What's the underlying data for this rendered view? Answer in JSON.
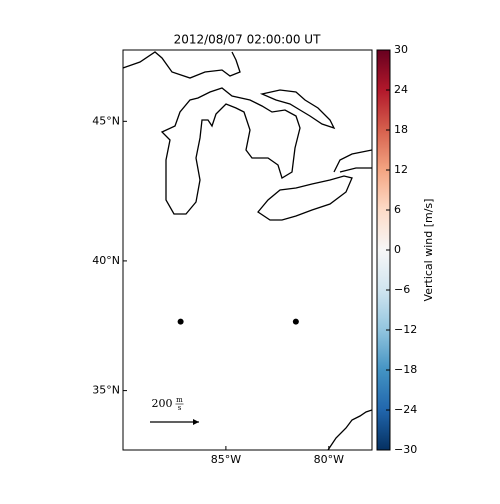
{
  "chart_data": {
    "type": "map",
    "title": "2012/08/07 02:00:00 UT",
    "projection": "mercator",
    "xlim": [
      -90,
      -77.9
    ],
    "ylim": [
      32.6,
      47.4
    ],
    "xticks": [
      {
        "value": -85,
        "label": "85°W"
      },
      {
        "value": -80,
        "label": "80°W"
      }
    ],
    "yticks": [
      {
        "value": 45,
        "label": "45°N"
      },
      {
        "value": 40,
        "label": "40°N"
      },
      {
        "value": 35,
        "label": "35°N"
      }
    ],
    "stations": {
      "lon": [
        -87.2,
        -81.6
      ],
      "lat": [
        37.7,
        37.7
      ],
      "color": "#000000"
    },
    "vector_key": {
      "value": 200,
      "num": "m",
      "den": "s"
    },
    "colorbar": {
      "label": "Vertical wind [m/s]",
      "clim": [
        -30,
        30
      ],
      "ticks": [
        30,
        24,
        18,
        12,
        6,
        0,
        {
          "value": -6,
          "label": "−6"
        },
        {
          "value": -12,
          "label": "−12"
        },
        {
          "value": -18,
          "label": "−18"
        },
        {
          "value": -24,
          "label": "−24"
        },
        {
          "value": -30,
          "label": "−30"
        }
      ],
      "colors": [
        "#053061",
        "#2166ac",
        "#4393c3",
        "#92c5de",
        "#d1e5f0",
        "#f7f7f7",
        "#fddbc7",
        "#f4a582",
        "#d6604d",
        "#b2182b",
        "#67001f"
      ]
    }
  }
}
